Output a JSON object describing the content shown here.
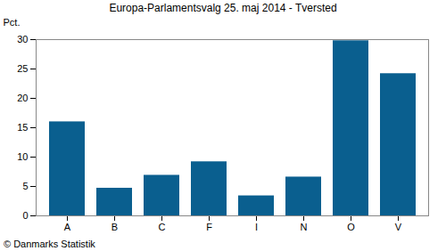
{
  "chart_data": {
    "type": "bar",
    "title": "Europa-Parlamentsvalg 25. maj 2014 - Tversted",
    "ylabel": "Pct.",
    "caption": "© Danmarks Statistik",
    "categories": [
      "A",
      "B",
      "C",
      "F",
      "I",
      "N",
      "O",
      "V"
    ],
    "values": [
      16.0,
      4.7,
      6.9,
      9.2,
      3.4,
      6.6,
      29.8,
      24.2
    ],
    "color": "#0a5f8f",
    "ylim": [
      0,
      30
    ],
    "yticks": [
      0,
      5,
      10,
      15,
      20,
      25,
      30
    ],
    "grid": false
  }
}
